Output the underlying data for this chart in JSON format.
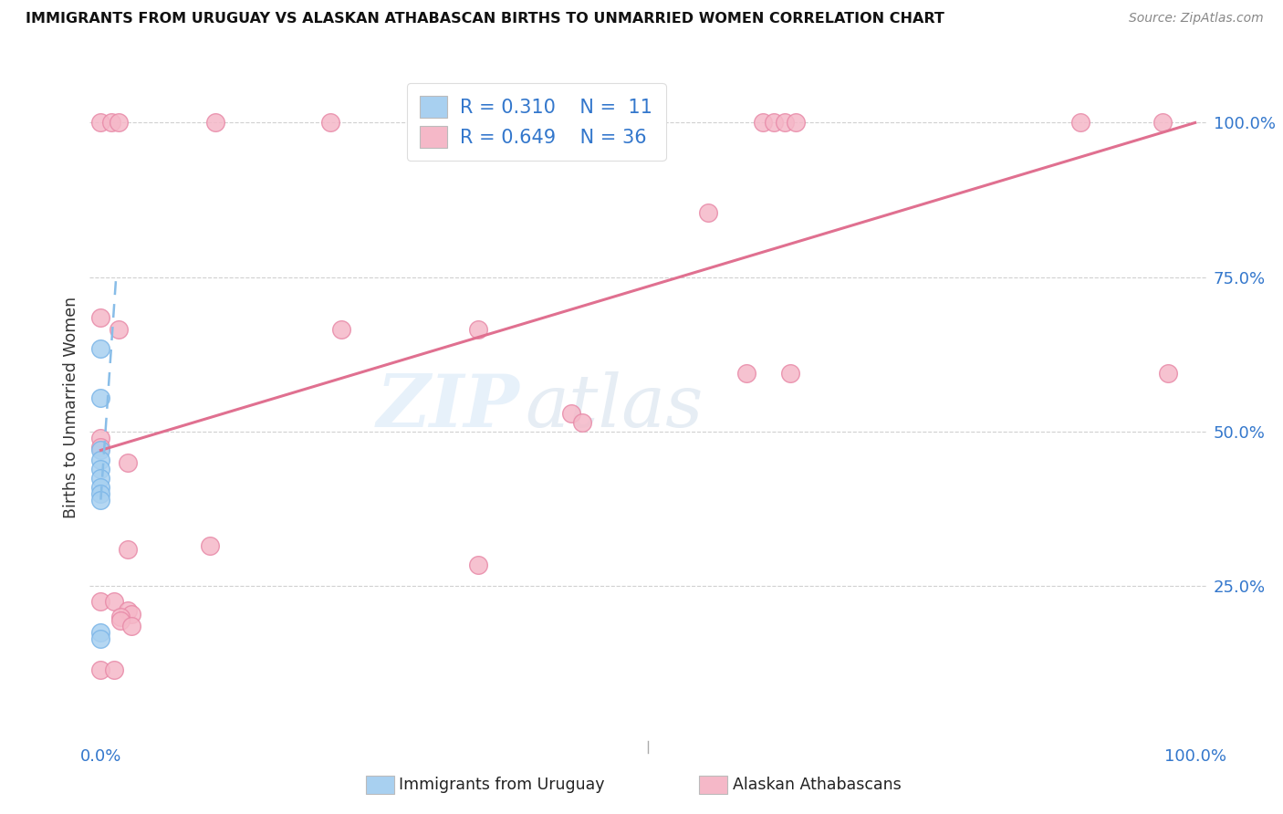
{
  "title": "IMMIGRANTS FROM URUGUAY VS ALASKAN ATHABASCAN BIRTHS TO UNMARRIED WOMEN CORRELATION CHART",
  "source": "Source: ZipAtlas.com",
  "ylabel": "Births to Unmarried Women",
  "legend_label1": "Immigrants from Uruguay",
  "legend_label2": "Alaskan Athabascans",
  "legend_r1": "R = 0.310",
  "legend_n1": "N =  11",
  "legend_r2": "R = 0.649",
  "legend_n2": "N = 36",
  "watermark_zip": "ZIP",
  "watermark_atlas": "atlas",
  "blue_color": "#a8d0f0",
  "blue_edge_color": "#7ab5e8",
  "pink_color": "#f5b8c8",
  "pink_edge_color": "#e88aa8",
  "blue_line_color": "#88bde8",
  "pink_line_color": "#e07090",
  "blue_points": [
    [
      0.0,
      0.635
    ],
    [
      0.0,
      0.555
    ],
    [
      0.0,
      0.47
    ],
    [
      0.0,
      0.455
    ],
    [
      0.0,
      0.44
    ],
    [
      0.0,
      0.425
    ],
    [
      0.0,
      0.41
    ],
    [
      0.0,
      0.4
    ],
    [
      0.0,
      0.39
    ],
    [
      0.0,
      0.175
    ],
    [
      0.0,
      0.165
    ]
  ],
  "pink_points": [
    [
      0.0,
      1.0
    ],
    [
      0.01,
      1.0
    ],
    [
      0.016,
      1.0
    ],
    [
      0.105,
      1.0
    ],
    [
      0.21,
      1.0
    ],
    [
      0.605,
      1.0
    ],
    [
      0.615,
      1.0
    ],
    [
      0.625,
      1.0
    ],
    [
      0.635,
      1.0
    ],
    [
      0.895,
      1.0
    ],
    [
      0.97,
      1.0
    ],
    [
      0.0,
      0.685
    ],
    [
      0.016,
      0.665
    ],
    [
      0.22,
      0.665
    ],
    [
      0.345,
      0.665
    ],
    [
      0.43,
      0.53
    ],
    [
      0.555,
      0.855
    ],
    [
      0.44,
      0.515
    ],
    [
      0.59,
      0.595
    ],
    [
      0.63,
      0.595
    ],
    [
      0.975,
      0.595
    ],
    [
      0.0,
      0.49
    ],
    [
      0.0,
      0.475
    ],
    [
      0.025,
      0.45
    ],
    [
      0.025,
      0.31
    ],
    [
      0.1,
      0.315
    ],
    [
      0.345,
      0.285
    ],
    [
      0.0,
      0.225
    ],
    [
      0.012,
      0.225
    ],
    [
      0.025,
      0.21
    ],
    [
      0.028,
      0.205
    ],
    [
      0.018,
      0.2
    ],
    [
      0.018,
      0.195
    ],
    [
      0.028,
      0.185
    ],
    [
      0.0,
      0.115
    ],
    [
      0.012,
      0.115
    ]
  ],
  "xlim": [
    -0.01,
    1.01
  ],
  "ylim": [
    0.0,
    1.08
  ],
  "pink_line_x": [
    0.0,
    1.0
  ],
  "pink_line_y": [
    0.47,
    1.0
  ],
  "blue_line_x": [
    0.0,
    0.014
  ],
  "blue_line_y": [
    0.39,
    0.75
  ],
  "figsize": [
    14.06,
    8.92
  ],
  "dpi": 100
}
